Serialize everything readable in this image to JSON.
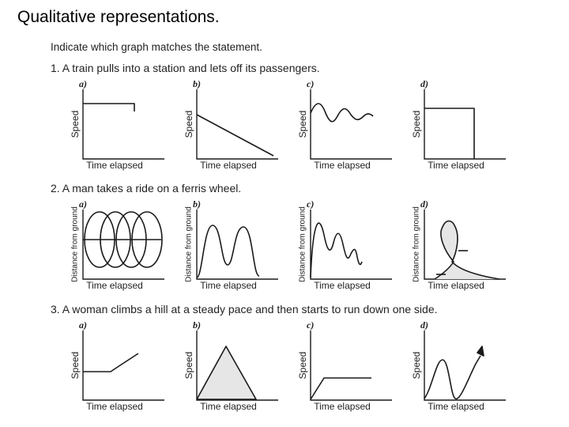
{
  "slide": {
    "title": "Qualitative representations.",
    "instruction": "Indicate which graph matches the statement."
  },
  "questions": [
    {
      "text": "1. A train pulls into a station and lets off its passengers.",
      "ylabel": "Speed",
      "xlabel": "Time elapsed",
      "options": [
        "a)",
        "b)",
        "c)",
        "d)"
      ]
    },
    {
      "text": "2. A man takes a ride on a ferris wheel.",
      "ylabel": "Distance from ground",
      "xlabel": "Time elapsed",
      "options": [
        "a)",
        "b)",
        "c)",
        "d)"
      ]
    },
    {
      "text": "3. A woman climbs a hill at a steady pace and then starts to run down one side.",
      "ylabel": "Speed",
      "xlabel": "Time elapsed",
      "options": [
        "a)",
        "b)",
        "c)",
        "d)"
      ]
    }
  ],
  "colors": {
    "ink": "#1a1a1a",
    "shade": "#e6e6e6",
    "background": "#ffffff"
  }
}
